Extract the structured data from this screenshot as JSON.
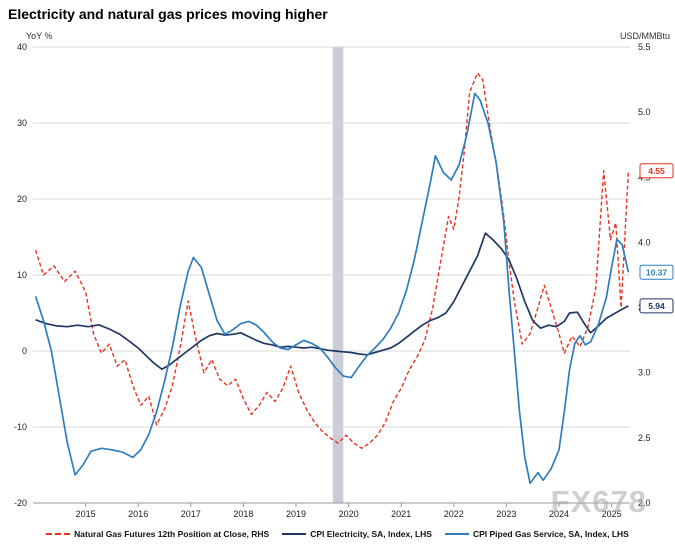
{
  "title": "Electricity and natural gas prices moving higher",
  "watermark": "FX678",
  "chart_data": {
    "type": "line",
    "title": "Electricity and natural gas prices moving higher",
    "grid": "horizontal",
    "legend_position": "bottom",
    "left_axis": {
      "label": "YoY %",
      "range": [
        -20,
        40
      ],
      "ticks": [
        40,
        30,
        20,
        10,
        0,
        -10,
        -20
      ]
    },
    "right_axis": {
      "label": "USD/MMBtu",
      "range": [
        2.0,
        5.5
      ],
      "ticks": [
        5.5,
        5.0,
        4.5,
        4.0,
        3.5,
        3.0,
        2.5,
        2.0
      ]
    },
    "x_axis": {
      "range": [
        2014.0,
        2025.35
      ],
      "ticks": [
        2015,
        2016,
        2017,
        2018,
        2019,
        2020,
        2021,
        2022,
        2023,
        2024,
        2025
      ]
    },
    "shaded_band": {
      "from": 2019.7,
      "to": 2019.9,
      "color": "#ccccd6"
    },
    "series": [
      {
        "id": "natural-gas-futures",
        "name": "Natural Gas Futures 12th Position at Close, RHS",
        "axis": "right",
        "color": "#e8331f",
        "dash": true,
        "points": [
          [
            2014.05,
            3.94
          ],
          [
            2014.2,
            3.75
          ],
          [
            2014.4,
            3.82
          ],
          [
            2014.6,
            3.7
          ],
          [
            2014.8,
            3.78
          ],
          [
            2015.0,
            3.62
          ],
          [
            2015.15,
            3.3
          ],
          [
            2015.3,
            3.15
          ],
          [
            2015.45,
            3.22
          ],
          [
            2015.6,
            3.05
          ],
          [
            2015.75,
            3.1
          ],
          [
            2015.9,
            2.9
          ],
          [
            2016.05,
            2.75
          ],
          [
            2016.2,
            2.82
          ],
          [
            2016.35,
            2.6
          ],
          [
            2016.5,
            2.72
          ],
          [
            2016.65,
            2.9
          ],
          [
            2016.8,
            3.2
          ],
          [
            2016.95,
            3.55
          ],
          [
            2017.1,
            3.25
          ],
          [
            2017.25,
            3.0
          ],
          [
            2017.4,
            3.1
          ],
          [
            2017.55,
            2.95
          ],
          [
            2017.7,
            2.9
          ],
          [
            2017.85,
            2.95
          ],
          [
            2018.0,
            2.8
          ],
          [
            2018.15,
            2.68
          ],
          [
            2018.3,
            2.75
          ],
          [
            2018.45,
            2.85
          ],
          [
            2018.6,
            2.78
          ],
          [
            2018.75,
            2.88
          ],
          [
            2018.9,
            3.05
          ],
          [
            2019.05,
            2.85
          ],
          [
            2019.2,
            2.72
          ],
          [
            2019.35,
            2.62
          ],
          [
            2019.5,
            2.55
          ],
          [
            2019.65,
            2.5
          ],
          [
            2019.8,
            2.46
          ],
          [
            2019.95,
            2.52
          ],
          [
            2020.1,
            2.46
          ],
          [
            2020.25,
            2.42
          ],
          [
            2020.4,
            2.46
          ],
          [
            2020.55,
            2.52
          ],
          [
            2020.7,
            2.62
          ],
          [
            2020.85,
            2.78
          ],
          [
            2021.0,
            2.88
          ],
          [
            2021.15,
            3.02
          ],
          [
            2021.3,
            3.12
          ],
          [
            2021.45,
            3.25
          ],
          [
            2021.6,
            3.5
          ],
          [
            2021.75,
            3.85
          ],
          [
            2021.9,
            4.2
          ],
          [
            2022.0,
            4.1
          ],
          [
            2022.1,
            4.35
          ],
          [
            2022.2,
            4.7
          ],
          [
            2022.3,
            5.15
          ],
          [
            2022.45,
            5.3
          ],
          [
            2022.55,
            5.25
          ],
          [
            2022.7,
            4.85
          ],
          [
            2022.85,
            4.5
          ],
          [
            2022.95,
            4.2
          ],
          [
            2023.05,
            3.85
          ],
          [
            2023.15,
            3.55
          ],
          [
            2023.3,
            3.22
          ],
          [
            2023.45,
            3.3
          ],
          [
            2023.6,
            3.5
          ],
          [
            2023.72,
            3.67
          ],
          [
            2023.85,
            3.5
          ],
          [
            2024.0,
            3.3
          ],
          [
            2024.1,
            3.15
          ],
          [
            2024.25,
            3.28
          ],
          [
            2024.4,
            3.2
          ],
          [
            2024.55,
            3.35
          ],
          [
            2024.7,
            3.65
          ],
          [
            2024.85,
            4.55
          ],
          [
            2024.98,
            4.02
          ],
          [
            2025.08,
            4.15
          ],
          [
            2025.18,
            3.5
          ],
          [
            2025.32,
            4.55
          ]
        ]
      },
      {
        "id": "cpi-electricity",
        "name": "CPI Electricity, SA, Index, LHS",
        "axis": "left",
        "color": "#1f3864",
        "dash": false,
        "points": [
          [
            2014.05,
            4.1
          ],
          [
            2014.25,
            3.6
          ],
          [
            2014.45,
            3.3
          ],
          [
            2014.65,
            3.2
          ],
          [
            2014.85,
            3.4
          ],
          [
            2015.05,
            3.2
          ],
          [
            2015.25,
            3.45
          ],
          [
            2015.45,
            2.9
          ],
          [
            2015.65,
            2.2
          ],
          [
            2015.85,
            1.2
          ],
          [
            2016.0,
            0.4
          ],
          [
            2016.15,
            -0.6
          ],
          [
            2016.3,
            -1.6
          ],
          [
            2016.45,
            -2.4
          ],
          [
            2016.6,
            -1.8
          ],
          [
            2016.75,
            -1.0
          ],
          [
            2016.9,
            -0.2
          ],
          [
            2017.05,
            0.6
          ],
          [
            2017.2,
            1.4
          ],
          [
            2017.35,
            2.0
          ],
          [
            2017.5,
            2.3
          ],
          [
            2017.65,
            2.1
          ],
          [
            2017.8,
            2.2
          ],
          [
            2017.95,
            2.4
          ],
          [
            2018.1,
            1.9
          ],
          [
            2018.25,
            1.4
          ],
          [
            2018.4,
            1.0
          ],
          [
            2018.55,
            0.8
          ],
          [
            2018.7,
            0.5
          ],
          [
            2018.85,
            0.6
          ],
          [
            2019.0,
            0.5
          ],
          [
            2019.15,
            0.4
          ],
          [
            2019.3,
            0.5
          ],
          [
            2019.45,
            0.3
          ],
          [
            2019.6,
            0.1
          ],
          [
            2019.75,
            0.0
          ],
          [
            2019.9,
            -0.1
          ],
          [
            2020.05,
            -0.2
          ],
          [
            2020.2,
            -0.4
          ],
          [
            2020.35,
            -0.5
          ],
          [
            2020.5,
            -0.2
          ],
          [
            2020.65,
            0.1
          ],
          [
            2020.8,
            0.4
          ],
          [
            2020.95,
            1.0
          ],
          [
            2021.1,
            1.8
          ],
          [
            2021.25,
            2.6
          ],
          [
            2021.4,
            3.4
          ],
          [
            2021.55,
            4.0
          ],
          [
            2021.7,
            4.4
          ],
          [
            2021.85,
            5.0
          ],
          [
            2022.0,
            6.5
          ],
          [
            2022.15,
            8.5
          ],
          [
            2022.3,
            10.5
          ],
          [
            2022.45,
            12.5
          ],
          [
            2022.6,
            15.5
          ],
          [
            2022.75,
            14.6
          ],
          [
            2022.9,
            13.5
          ],
          [
            2023.05,
            12.0
          ],
          [
            2023.2,
            9.5
          ],
          [
            2023.35,
            6.5
          ],
          [
            2023.5,
            4.0
          ],
          [
            2023.65,
            3.0
          ],
          [
            2023.8,
            3.4
          ],
          [
            2023.95,
            3.2
          ],
          [
            2024.1,
            3.9
          ],
          [
            2024.2,
            5.0
          ],
          [
            2024.35,
            5.1
          ],
          [
            2024.5,
            3.4
          ],
          [
            2024.6,
            2.4
          ],
          [
            2024.75,
            3.3
          ],
          [
            2024.9,
            4.3
          ],
          [
            2025.05,
            4.9
          ],
          [
            2025.2,
            5.5
          ],
          [
            2025.32,
            5.94
          ]
        ]
      },
      {
        "id": "cpi-piped-gas",
        "name": "CPI Piped Gas Service, SA, Index, LHS",
        "axis": "left",
        "color": "#2e7ebe",
        "dash": false,
        "points": [
          [
            2014.05,
            7.2
          ],
          [
            2014.2,
            4.0
          ],
          [
            2014.35,
            0.0
          ],
          [
            2014.5,
            -6.0
          ],
          [
            2014.65,
            -12.0
          ],
          [
            2014.8,
            -16.3
          ],
          [
            2014.95,
            -15.0
          ],
          [
            2015.1,
            -13.2
          ],
          [
            2015.3,
            -12.8
          ],
          [
            2015.5,
            -13.0
          ],
          [
            2015.7,
            -13.3
          ],
          [
            2015.9,
            -14.0
          ],
          [
            2016.05,
            -13.0
          ],
          [
            2016.2,
            -11.0
          ],
          [
            2016.35,
            -8.0
          ],
          [
            2016.5,
            -4.0
          ],
          [
            2016.65,
            0.5
          ],
          [
            2016.8,
            6.0
          ],
          [
            2016.95,
            10.5
          ],
          [
            2017.05,
            12.3
          ],
          [
            2017.2,
            11.0
          ],
          [
            2017.35,
            7.5
          ],
          [
            2017.5,
            4.0
          ],
          [
            2017.65,
            2.2
          ],
          [
            2017.8,
            2.8
          ],
          [
            2017.95,
            3.6
          ],
          [
            2018.1,
            3.9
          ],
          [
            2018.25,
            3.4
          ],
          [
            2018.4,
            2.4
          ],
          [
            2018.55,
            1.2
          ],
          [
            2018.7,
            0.4
          ],
          [
            2018.85,
            0.2
          ],
          [
            2019.0,
            0.8
          ],
          [
            2019.15,
            1.4
          ],
          [
            2019.3,
            1.0
          ],
          [
            2019.45,
            0.4
          ],
          [
            2019.6,
            -0.8
          ],
          [
            2019.75,
            -2.2
          ],
          [
            2019.9,
            -3.3
          ],
          [
            2020.05,
            -3.5
          ],
          [
            2020.2,
            -2.0
          ],
          [
            2020.35,
            -0.6
          ],
          [
            2020.5,
            0.4
          ],
          [
            2020.65,
            1.5
          ],
          [
            2020.8,
            3.0
          ],
          [
            2020.95,
            5.0
          ],
          [
            2021.1,
            8.0
          ],
          [
            2021.25,
            12.0
          ],
          [
            2021.4,
            17.0
          ],
          [
            2021.55,
            22.0
          ],
          [
            2021.65,
            25.7
          ],
          [
            2021.8,
            23.5
          ],
          [
            2021.95,
            22.5
          ],
          [
            2022.1,
            24.5
          ],
          [
            2022.25,
            28.5
          ],
          [
            2022.4,
            33.9
          ],
          [
            2022.5,
            33.0
          ],
          [
            2022.65,
            30.0
          ],
          [
            2022.8,
            25.0
          ],
          [
            2022.95,
            17.0
          ],
          [
            2023.05,
            8.0
          ],
          [
            2023.15,
            0.0
          ],
          [
            2023.25,
            -8.0
          ],
          [
            2023.35,
            -14.0
          ],
          [
            2023.45,
            -17.4
          ],
          [
            2023.6,
            -16.0
          ],
          [
            2023.7,
            -17.0
          ],
          [
            2023.85,
            -15.5
          ],
          [
            2024.0,
            -13.0
          ],
          [
            2024.1,
            -8.0
          ],
          [
            2024.2,
            -2.5
          ],
          [
            2024.3,
            1.0
          ],
          [
            2024.4,
            2.0
          ],
          [
            2024.5,
            0.8
          ],
          [
            2024.6,
            1.2
          ],
          [
            2024.75,
            3.5
          ],
          [
            2024.9,
            7.0
          ],
          [
            2025.0,
            11.0
          ],
          [
            2025.1,
            14.7
          ],
          [
            2025.2,
            14.0
          ],
          [
            2025.32,
            10.37
          ]
        ]
      }
    ],
    "end_labels": [
      {
        "text": "4.55",
        "value": 4.55,
        "axis": "right",
        "color": "#e8331f"
      },
      {
        "text": "10.37",
        "value": 10.37,
        "axis": "left",
        "color": "#2e7ebe"
      },
      {
        "text": "5.94",
        "value": 5.94,
        "axis": "left",
        "color": "#1f3864"
      }
    ]
  }
}
